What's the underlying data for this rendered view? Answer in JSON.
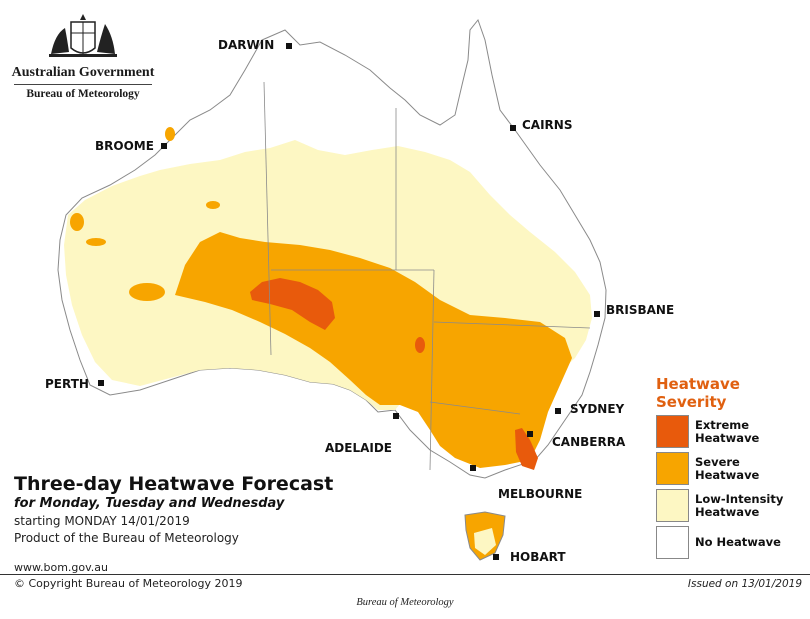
{
  "branding": {
    "government": "Australian Government",
    "agency": "Bureau of Meteorology"
  },
  "title": {
    "main": "Three-day Heatwave Forecast",
    "days": "for Monday, Tuesday and Wednesday",
    "starting": "starting MONDAY 14/01/2019",
    "product": "Product of the Bureau of Meteorology"
  },
  "website": "www.bom.gov.au",
  "copyright": "© Copyright Bureau of Meteorology 2019",
  "issued": "Issued on 13/01/2019",
  "caption": "Bureau of Meteorology",
  "legend": {
    "title_line1": "Heatwave",
    "title_line2": "Severity",
    "items": [
      {
        "label": "Extreme\nHeatwave",
        "color": "#e85a0c"
      },
      {
        "label": "Severe\nHeatwave",
        "color": "#f7a500"
      },
      {
        "label": "Low-Intensity\nHeatwave",
        "color": "#fdf7c3"
      },
      {
        "label": "No Heatwave",
        "color": "#ffffff"
      }
    ]
  },
  "cities": {
    "darwin": "DARWIN",
    "cairns": "CAIRNS",
    "broome": "BROOME",
    "brisbane": "BRISBANE",
    "perth": "PERTH",
    "sydney": "SYDNEY",
    "canberra": "CANBERRA",
    "adelaide": "ADELAIDE",
    "melbourne": "MELBOURNE",
    "hobart": "HOBART"
  },
  "colors": {
    "extreme": "#e85a0c",
    "severe": "#f7a500",
    "low": "#fdf7c3",
    "none": "#ffffff",
    "outline": "#888888",
    "legend_title": "#e06010"
  }
}
